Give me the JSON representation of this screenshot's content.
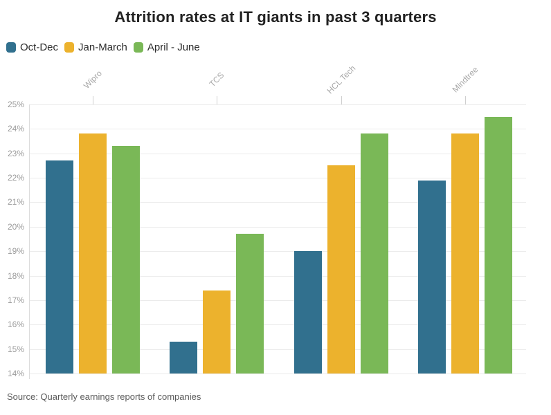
{
  "chart_data": {
    "type": "bar",
    "title": "Attrition rates at IT giants in past 3 quarters",
    "categories": [
      "Wipro",
      "TCS",
      "HCL Tech",
      "Mindtree"
    ],
    "series": [
      {
        "name": "Oct-Dec",
        "color": "#31708e",
        "values": [
          22.7,
          15.3,
          19.0,
          21.9
        ]
      },
      {
        "name": "Jan-March",
        "color": "#ecb22d",
        "values": [
          23.8,
          17.4,
          22.5,
          23.8
        ]
      },
      {
        "name": "April - June",
        "color": "#7ab857",
        "values": [
          23.3,
          19.7,
          23.8,
          24.5
        ]
      }
    ],
    "xlabel": "",
    "ylabel": "",
    "ylim": [
      14,
      25
    ],
    "y_ticks": [
      "25%",
      "24%",
      "23%",
      "22%",
      "21%",
      "20%",
      "19%",
      "18%",
      "17%",
      "16%",
      "15%",
      "14%"
    ],
    "grid": true,
    "legend_position": "top-left",
    "source": "Source: Quarterly earnings reports of companies"
  }
}
